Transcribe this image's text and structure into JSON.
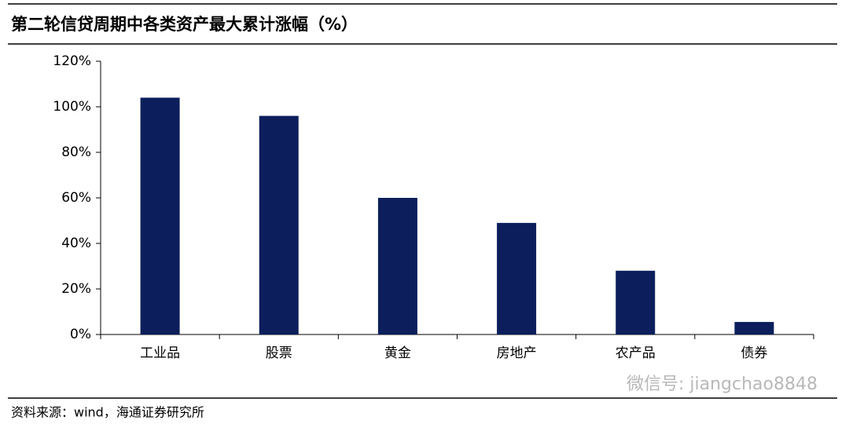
{
  "chart_data": {
    "type": "bar",
    "title": "第二轮信贷周期中各类资产最大累计涨幅（%）",
    "categories": [
      "工业品",
      "股票",
      "黄金",
      "房地产",
      "农产品",
      "债券"
    ],
    "values": [
      104,
      96,
      60,
      49,
      28,
      5.5
    ],
    "color": "#0c1f5c",
    "ylim": [
      0,
      120
    ],
    "yticks": [
      {
        "value": 0,
        "label": "0%"
      },
      {
        "value": 20,
        "label": "20%"
      },
      {
        "value": 40,
        "label": "40%"
      },
      {
        "value": 60,
        "label": "60%"
      },
      {
        "value": 80,
        "label": "80%"
      },
      {
        "value": 100,
        "label": "100%"
      },
      {
        "value": 120,
        "label": "120%"
      }
    ],
    "grid": false,
    "watermark": "微信号: jiangchao8848",
    "source": "资料来源：wind，海通证券研究所"
  }
}
